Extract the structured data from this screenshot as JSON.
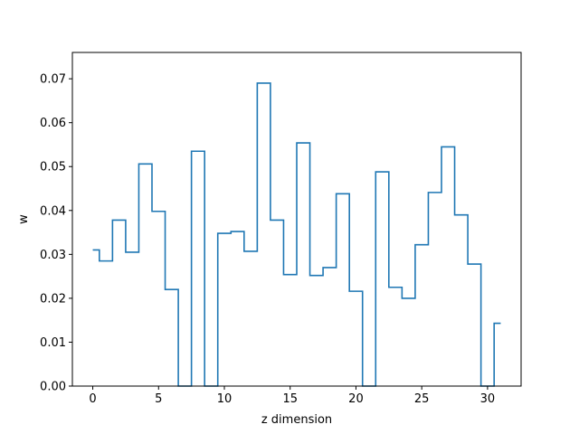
{
  "chart_data": {
    "type": "line",
    "drawstyle": "steps-mid",
    "xlabel": "z dimension",
    "ylabel": "w",
    "xlim": [
      -1.55,
      32.55
    ],
    "ylim": [
      0,
      0.076
    ],
    "xticks": [
      0,
      5,
      10,
      15,
      20,
      25,
      30
    ],
    "yticks": [
      0.0,
      0.01,
      0.02,
      0.03,
      0.04,
      0.05,
      0.06,
      0.07
    ],
    "ytick_labels": [
      "0.00",
      "0.01",
      "0.02",
      "0.03",
      "0.04",
      "0.05",
      "0.06",
      "0.07"
    ],
    "xtick_labels": [
      "0",
      "5",
      "10",
      "15",
      "20",
      "25",
      "30"
    ],
    "grid": false,
    "line_color": "#1f77b4",
    "x": [
      0,
      1,
      2,
      3,
      4,
      5,
      6,
      7,
      8,
      9,
      10,
      11,
      12,
      13,
      14,
      15,
      16,
      17,
      18,
      19,
      20,
      21,
      22,
      23,
      24,
      25,
      26,
      27,
      28,
      29,
      30,
      31
    ],
    "y": [
      0.031,
      0.0285,
      0.0378,
      0.0305,
      0.0506,
      0.0398,
      0.022,
      0.0,
      0.0535,
      0.0,
      0.0348,
      0.0352,
      0.0307,
      0.069,
      0.0378,
      0.0254,
      0.0554,
      0.0252,
      0.027,
      0.0438,
      0.0216,
      0.0,
      0.0488,
      0.0225,
      0.02,
      0.0322,
      0.0441,
      0.0545,
      0.039,
      0.0278,
      0.0,
      0.0143
    ]
  }
}
